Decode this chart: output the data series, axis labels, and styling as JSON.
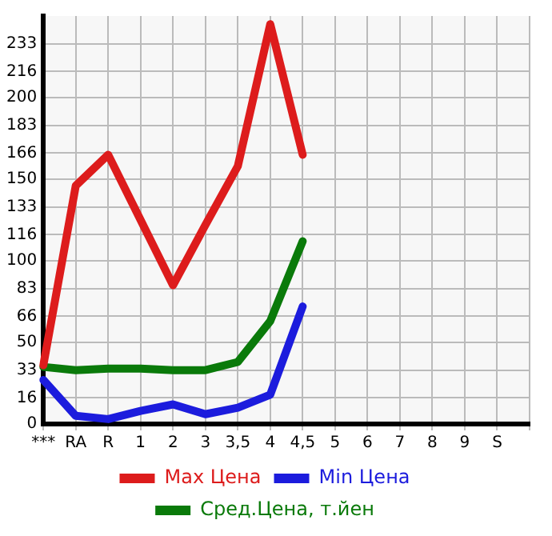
{
  "chart_data": {
    "type": "line",
    "categories": [
      "***",
      "RA",
      "R",
      "1",
      "2",
      "3",
      "3,5",
      "4",
      "4,5",
      "5",
      "6",
      "7",
      "8",
      "9",
      "S",
      null
    ],
    "series": [
      {
        "name": "Max Цена",
        "color": "#dd1c1c",
        "values": [
          36,
          146,
          165,
          125,
          85,
          122,
          158,
          245,
          165,
          null,
          null,
          null,
          null,
          null,
          null,
          null
        ]
      },
      {
        "name": "Min Цена",
        "color": "#1c1cdd",
        "values": [
          27,
          5,
          3,
          8,
          12,
          6,
          10,
          18,
          72,
          null,
          null,
          null,
          null,
          null,
          null,
          null
        ]
      },
      {
        "name": "Сред.Цена, т.йен",
        "color": "#0a7a0a",
        "values": [
          35,
          33,
          34,
          34,
          33,
          33,
          38,
          63,
          112,
          null,
          null,
          null,
          null,
          null,
          null,
          null
        ]
      }
    ],
    "ylim": [
      0,
      250
    ],
    "yticks": [
      0,
      16,
      33,
      50,
      66,
      83,
      100,
      116,
      133,
      150,
      166,
      183,
      200,
      216,
      233
    ],
    "grid": true,
    "legend": "bottom",
    "marker": "none",
    "line_style": "solid"
  }
}
